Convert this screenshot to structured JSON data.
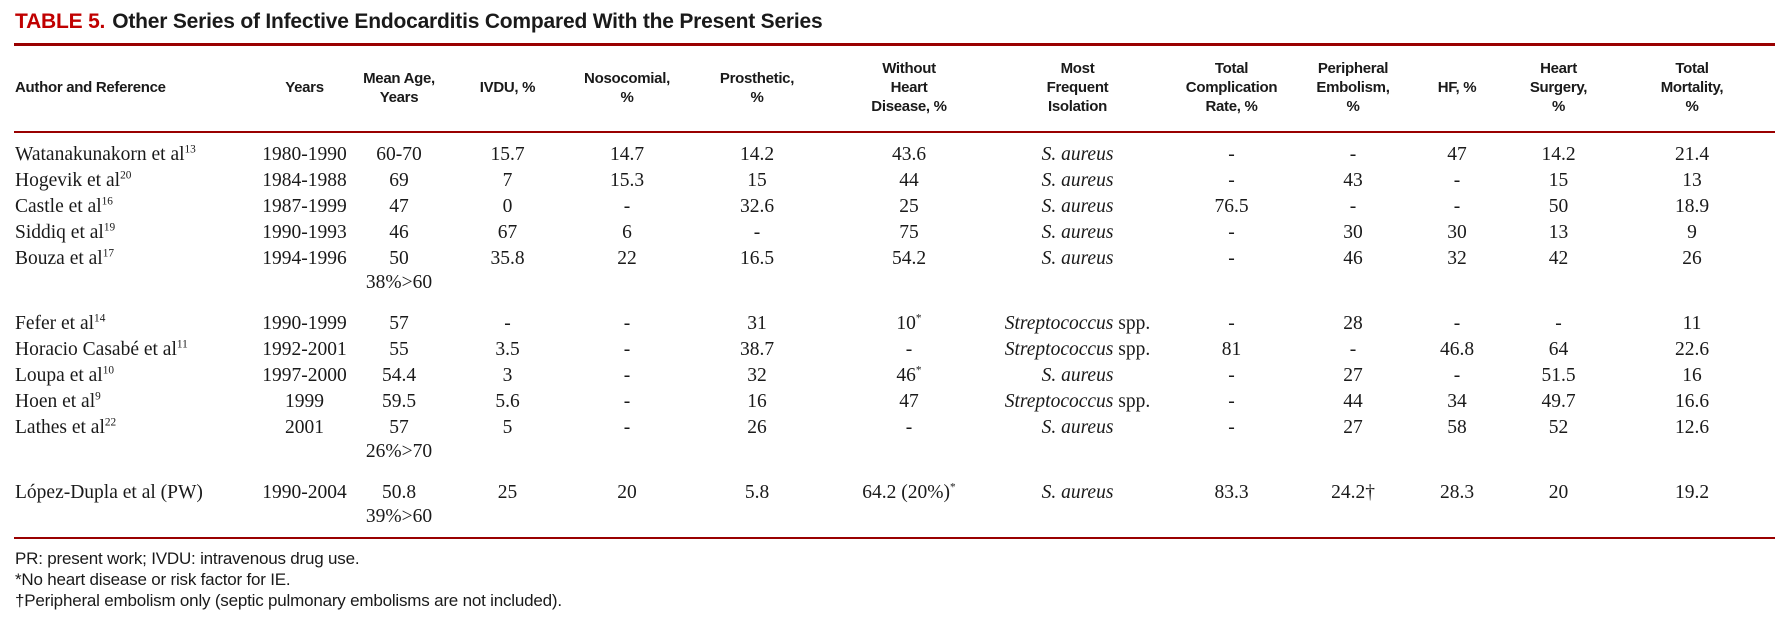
{
  "caption": {
    "label": "TABLE 5.",
    "title": "Other Series of Infective Endocarditis Compared With the Present Series"
  },
  "colors": {
    "accent_red": "#c00000",
    "rule_red": "#990000"
  },
  "table": {
    "columns": [
      {
        "key": "author",
        "label": "Author and Reference",
        "lines": [
          "Author and Reference"
        ]
      },
      {
        "key": "years",
        "label": "Years",
        "lines": [
          "Years"
        ]
      },
      {
        "key": "mean-age",
        "label": "Mean Age, Years",
        "lines": [
          "Mean Age,",
          "Years"
        ]
      },
      {
        "key": "ivdu",
        "label": "IVDU, %",
        "lines": [
          "IVDU, %"
        ]
      },
      {
        "key": "nosocomial",
        "label": "Nosocomial, %",
        "lines": [
          "Nosocomial,",
          "%"
        ]
      },
      {
        "key": "prosthetic",
        "label": "Prosthetic, %",
        "lines": [
          "Prosthetic,",
          "%"
        ]
      },
      {
        "key": "without-heart-disease",
        "label": "Without Heart Disease, %",
        "lines": [
          "Without",
          "Heart",
          "Disease, %"
        ]
      },
      {
        "key": "isolation",
        "label": "Most Frequent Isolation",
        "lines": [
          "Most",
          "Frequent",
          "Isolation"
        ]
      },
      {
        "key": "total-complication-rate",
        "label": "Total Complication Rate, %",
        "lines": [
          "Total",
          "Complication",
          "Rate, %"
        ]
      },
      {
        "key": "peripheral-embolism",
        "label": "Peripheral Embolism, %",
        "lines": [
          "Peripheral",
          "Embolism,",
          "%"
        ]
      },
      {
        "key": "hf",
        "label": "HF, %",
        "lines": [
          "HF, %"
        ]
      },
      {
        "key": "heart-surgery",
        "label": "Heart Surgery, %",
        "lines": [
          "Heart",
          "Surgery,",
          "%"
        ]
      },
      {
        "key": "total-mortality",
        "label": "Total Mortality, %",
        "lines": [
          "Total",
          "Mortality,",
          "%"
        ]
      }
    ],
    "rows": [
      {
        "author": "Watanakunakorn et al",
        "ref": "13",
        "years": "1980-1990",
        "mean_age": "60-70",
        "mean_age_sub": "",
        "ivdu": "15.7",
        "nosocomial": "14.7",
        "prosthetic": "14.2",
        "without_hd": "43.6",
        "without_hd_sup": "",
        "isolation_italic": "S. aureus",
        "isolation_roman": "",
        "total_complication": "-",
        "peripheral_embolism": "-",
        "hf": "47",
        "heart_surgery": "14.2",
        "total_mortality": "21.4",
        "group_start": false
      },
      {
        "author": "Hogevik et al",
        "ref": "20",
        "years": "1984-1988",
        "mean_age": "69",
        "mean_age_sub": "",
        "ivdu": "7",
        "nosocomial": "15.3",
        "prosthetic": "15",
        "without_hd": "44",
        "without_hd_sup": "",
        "isolation_italic": "S. aureus",
        "isolation_roman": "",
        "total_complication": "-",
        "peripheral_embolism": "43",
        "hf": "-",
        "heart_surgery": "15",
        "total_mortality": "13",
        "group_start": false
      },
      {
        "author": "Castle et al",
        "ref": "16",
        "years": "1987-1999",
        "mean_age": "47",
        "mean_age_sub": "",
        "ivdu": "0",
        "nosocomial": "-",
        "prosthetic": "32.6",
        "without_hd": "25",
        "without_hd_sup": "",
        "isolation_italic": "S. aureus",
        "isolation_roman": "",
        "total_complication": "76.5",
        "peripheral_embolism": "-",
        "hf": "-",
        "heart_surgery": "50",
        "total_mortality": "18.9",
        "group_start": false
      },
      {
        "author": "Siddiq et al",
        "ref": "19",
        "years": "1990-1993",
        "mean_age": "46",
        "mean_age_sub": "",
        "ivdu": "67",
        "nosocomial": "6",
        "prosthetic": "-",
        "without_hd": "75",
        "without_hd_sup": "",
        "isolation_italic": "S. aureus",
        "isolation_roman": "",
        "total_complication": "-",
        "peripheral_embolism": "30",
        "hf": "30",
        "heart_surgery": "13",
        "total_mortality": "9",
        "group_start": false
      },
      {
        "author": "Bouza et al",
        "ref": "17",
        "years": "1994-1996",
        "mean_age": "50",
        "mean_age_sub": "38%>60",
        "ivdu": "35.8",
        "nosocomial": "22",
        "prosthetic": "16.5",
        "without_hd": "54.2",
        "without_hd_sup": "",
        "isolation_italic": "S. aureus",
        "isolation_roman": "",
        "total_complication": "-",
        "peripheral_embolism": "46",
        "hf": "32",
        "heart_surgery": "42",
        "total_mortality": "26",
        "group_start": false
      },
      {
        "author": "Fefer et al",
        "ref": "14",
        "years": "1990-1999",
        "mean_age": "57",
        "mean_age_sub": "",
        "ivdu": "-",
        "nosocomial": "-",
        "prosthetic": "31",
        "without_hd": "10",
        "without_hd_sup": "*",
        "isolation_italic": "Streptococcus",
        "isolation_roman": " spp.",
        "total_complication": "-",
        "peripheral_embolism": "28",
        "hf": "-",
        "heart_surgery": "-",
        "total_mortality": "11",
        "group_start": true
      },
      {
        "author": "Horacio Casabé et al",
        "ref": "11",
        "years": "1992-2001",
        "mean_age": "55",
        "mean_age_sub": "",
        "ivdu": "3.5",
        "nosocomial": "-",
        "prosthetic": "38.7",
        "without_hd": "-",
        "without_hd_sup": "",
        "isolation_italic": "Streptococcus",
        "isolation_roman": " spp.",
        "total_complication": "81",
        "peripheral_embolism": "-",
        "hf": "46.8",
        "heart_surgery": "64",
        "total_mortality": "22.6",
        "group_start": false
      },
      {
        "author": "Loupa et al",
        "ref": "10",
        "years": "1997-2000",
        "mean_age": "54.4",
        "mean_age_sub": "",
        "ivdu": "3",
        "nosocomial": "-",
        "prosthetic": "32",
        "without_hd": "46",
        "without_hd_sup": "*",
        "isolation_italic": "S. aureus",
        "isolation_roman": "",
        "total_complication": "-",
        "peripheral_embolism": "27",
        "hf": "-",
        "heart_surgery": "51.5",
        "total_mortality": "16",
        "group_start": false
      },
      {
        "author": "Hoen et al",
        "ref": "9",
        "years": "1999",
        "mean_age": "59.5",
        "mean_age_sub": "",
        "ivdu": "5.6",
        "nosocomial": "-",
        "prosthetic": "16",
        "without_hd": "47",
        "without_hd_sup": "",
        "isolation_italic": "Streptococcus",
        "isolation_roman": " spp.",
        "total_complication": "-",
        "peripheral_embolism": "44",
        "hf": "34",
        "heart_surgery": "49.7",
        "total_mortality": "16.6",
        "group_start": false
      },
      {
        "author": "Lathes et al",
        "ref": "22",
        "years": "2001",
        "mean_age": "57",
        "mean_age_sub": "26%>70",
        "ivdu": "5",
        "nosocomial": "-",
        "prosthetic": "26",
        "without_hd": "-",
        "without_hd_sup": "",
        "isolation_italic": "S. aureus",
        "isolation_roman": "",
        "total_complication": "-",
        "peripheral_embolism": "27",
        "hf": "58",
        "heart_surgery": "52",
        "total_mortality": "12.6",
        "group_start": false
      },
      {
        "author": "López-Dupla et al (PW)",
        "ref": "",
        "years": "1990-2004",
        "mean_age": "50.8",
        "mean_age_sub": "39%>60",
        "ivdu": "25",
        "nosocomial": "20",
        "prosthetic": "5.8",
        "without_hd": "64.2 (20%)",
        "without_hd_sup": "*",
        "isolation_italic": "S. aureus",
        "isolation_roman": "",
        "total_complication": "83.3",
        "peripheral_embolism": "24.2†",
        "hf": "28.3",
        "heart_surgery": "20",
        "total_mortality": "19.2",
        "group_start": true
      }
    ]
  },
  "footnotes": [
    "PR: present work; IVDU: intravenous drug use.",
    "*No heart disease or risk factor for IE.",
    "†Peripheral embolism only (septic pulmonary embolisms are not included)."
  ]
}
